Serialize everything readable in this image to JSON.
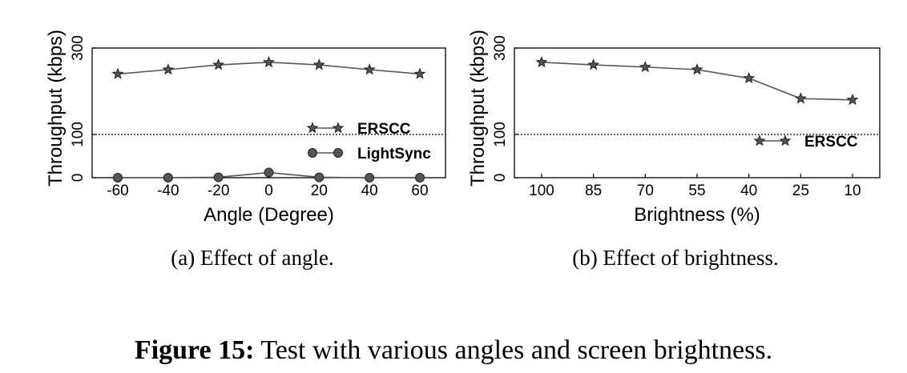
{
  "chart_data": [
    {
      "type": "line",
      "xlabel": "Angle (Degree)",
      "ylabel": "Throughput (kbps)",
      "ylim": [
        0,
        300
      ],
      "yticks": [
        "0",
        "100",
        "300"
      ],
      "categories": [
        "-60",
        "-40",
        "-20",
        "0",
        "20",
        "40",
        "60"
      ],
      "reference_line": 100,
      "legend_position": "center-right",
      "series": [
        {
          "name": "ERSCC",
          "marker": "star",
          "values": [
            240,
            250,
            261,
            267,
            261,
            250,
            240
          ]
        },
        {
          "name": "LightSync",
          "marker": "circle",
          "values": [
            0,
            0,
            1,
            12,
            1,
            0,
            0
          ]
        }
      ],
      "caption": "(a) Effect of angle."
    },
    {
      "type": "line",
      "xlabel": "Brightness (%)",
      "ylabel": "Throughput (kbps)",
      "ylim": [
        0,
        300
      ],
      "yticks": [
        "0",
        "100",
        "300"
      ],
      "categories": [
        "100",
        "85",
        "70",
        "55",
        "40",
        "25",
        "10"
      ],
      "reference_line": 100,
      "legend_position": "center-right",
      "series": [
        {
          "name": "ERSCC",
          "marker": "star",
          "values": [
            267,
            261,
            256,
            250,
            230,
            183,
            180
          ]
        }
      ],
      "caption": "(b) Effect of brightness."
    }
  ],
  "figure_caption": {
    "label": "Figure 15:",
    "text": " Test with various angles and screen brightness."
  },
  "colors": {
    "line": "#555555",
    "marker_fill": "#555555",
    "marker_stroke": "#222222",
    "axis": "#000000"
  }
}
